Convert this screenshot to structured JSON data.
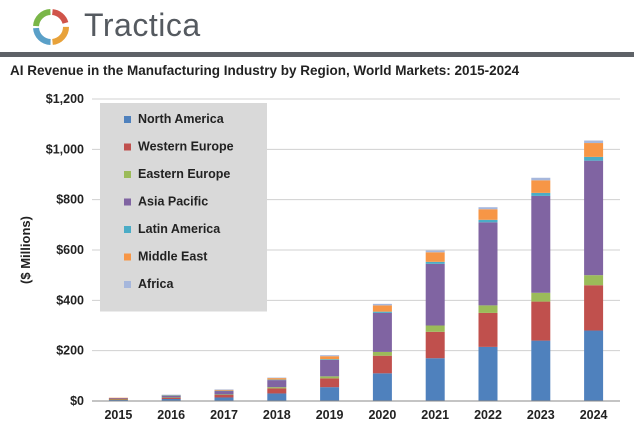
{
  "brand": {
    "name": "Tractica"
  },
  "chart_data": {
    "type": "bar",
    "stacked": true,
    "title": "AI Revenue in the Manufacturing Industry by Region, World Markets: 2015-2024",
    "ylabel": "($ Millions)",
    "xlabel": "",
    "ylim": [
      0,
      1200
    ],
    "yticks": [
      0,
      200,
      400,
      600,
      800,
      1000,
      1200
    ],
    "ytick_labels": [
      "$0",
      "$200",
      "$400",
      "$600",
      "$800",
      "$1,000",
      "$1,200"
    ],
    "grid": true,
    "legend_position": "top-left",
    "categories": [
      "2015",
      "2016",
      "2017",
      "2018",
      "2019",
      "2020",
      "2021",
      "2022",
      "2023",
      "2024"
    ],
    "series": [
      {
        "name": "North America",
        "color": "#4f81bd",
        "values": [
          4,
          8,
          14,
          30,
          55,
          110,
          170,
          215,
          240,
          280
        ]
      },
      {
        "name": "Western Europe",
        "color": "#c0504d",
        "values": [
          3,
          5,
          10,
          20,
          35,
          70,
          105,
          135,
          155,
          180
        ]
      },
      {
        "name": "Eastern Europe",
        "color": "#9bbb59",
        "values": [
          1,
          1,
          2,
          5,
          8,
          15,
          25,
          30,
          35,
          40
        ]
      },
      {
        "name": "Asia Pacific",
        "color": "#8064a2",
        "values": [
          4,
          7,
          14,
          28,
          65,
          155,
          245,
          330,
          385,
          455
        ]
      },
      {
        "name": "Latin America",
        "color": "#4bacc6",
        "values": [
          0,
          1,
          1,
          2,
          3,
          5,
          8,
          10,
          12,
          15
        ]
      },
      {
        "name": "Middle East",
        "color": "#f79646",
        "values": [
          1,
          2,
          4,
          6,
          12,
          25,
          38,
          42,
          50,
          55
        ]
      },
      {
        "name": "Africa",
        "color": "#a6b7dc",
        "values": [
          0,
          1,
          1,
          2,
          4,
          6,
          7,
          8,
          10,
          10
        ]
      }
    ]
  }
}
